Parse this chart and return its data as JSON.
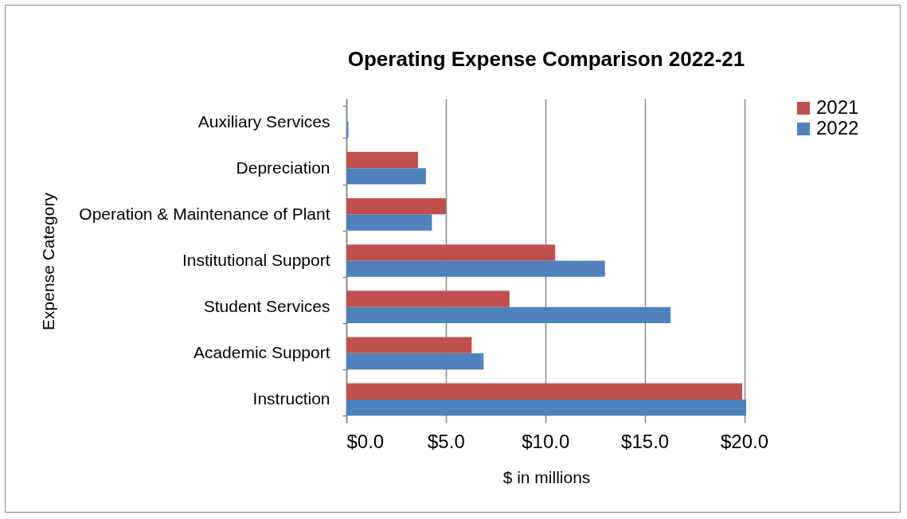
{
  "chart_data": {
    "type": "bar",
    "orientation": "horizontal",
    "title": "Operating Expense Comparison 2022-21",
    "xlabel": "$ in millions",
    "ylabel": "Expense Category",
    "categories": [
      "Auxiliary Services",
      "Depreciation",
      "Operation & Maintenance of Plant",
      "Institutional Support",
      "Student Services",
      "Academic Support",
      "Instruction"
    ],
    "series": [
      {
        "name": "2021",
        "color": "#c0504d",
        "values": [
          null,
          3.6,
          5.0,
          10.5,
          8.2,
          6.3,
          19.9
        ]
      },
      {
        "name": "2022",
        "color": "#4f81bd",
        "values": [
          0.1,
          4.0,
          4.3,
          13.0,
          16.3,
          6.9,
          20.1
        ]
      }
    ],
    "xlim": [
      0,
      20.1
    ],
    "xticks": [
      {
        "value": 0,
        "label": "$0.0"
      },
      {
        "value": 5,
        "label": "$5.0"
      },
      {
        "value": 10,
        "label": "$10.0"
      },
      {
        "value": 15,
        "label": "$15.0"
      },
      {
        "value": 20,
        "label": "$20.0"
      }
    ],
    "grid": "x",
    "legend": "right"
  }
}
